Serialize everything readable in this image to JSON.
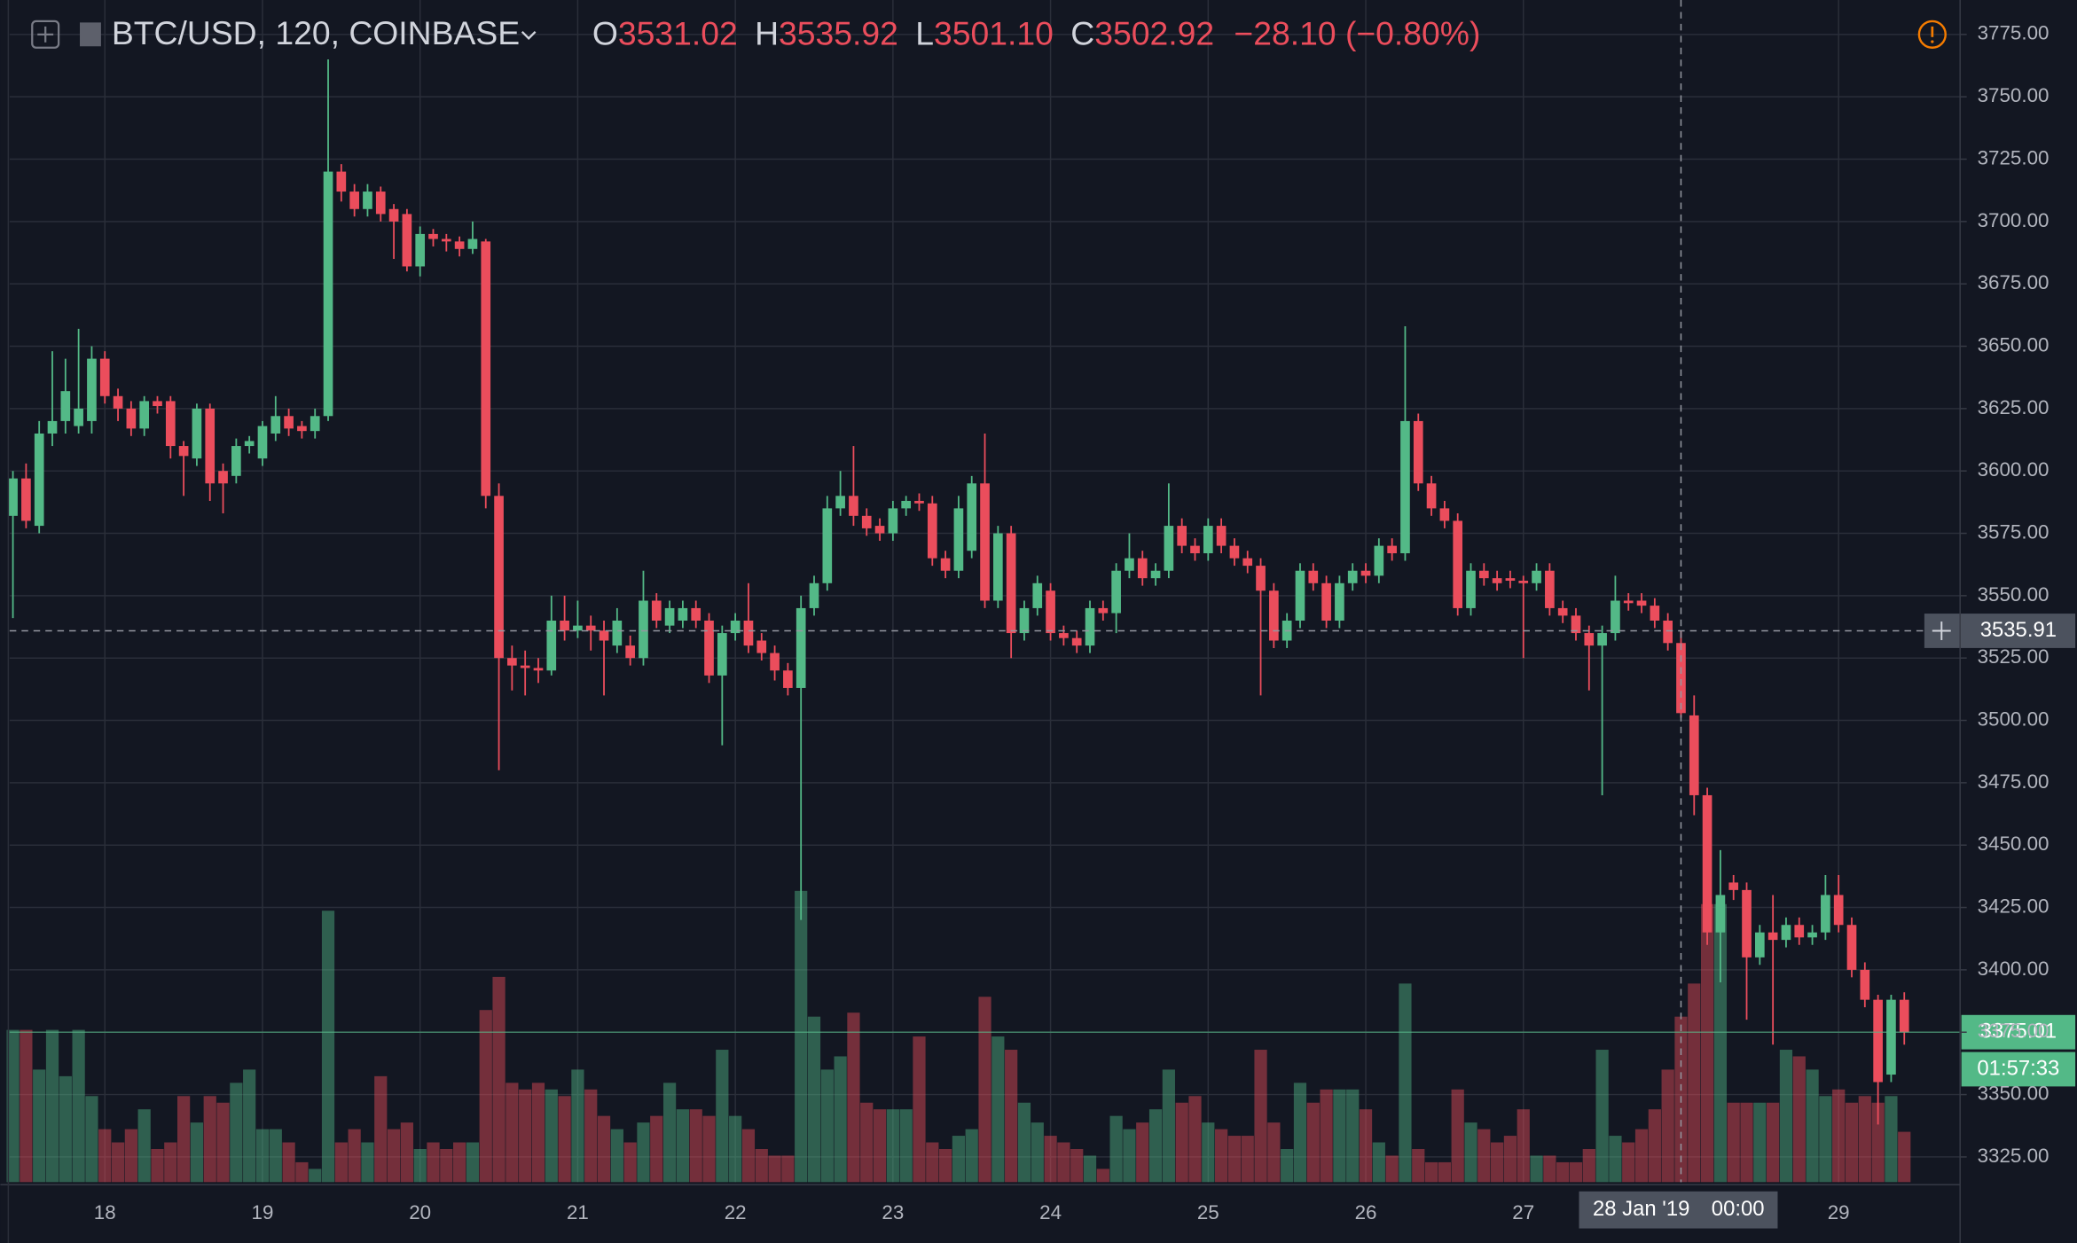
{
  "chart_data": {
    "type": "candlestick",
    "header": {
      "symbol": "BTC/USD, 120, COINBASE",
      "o": "O",
      "open": "3531.02",
      "h": "H",
      "high": "3535.92",
      "l": "L",
      "low": "3501.10",
      "c": "C",
      "close": "3502.92",
      "change": "−28.10 (−0.80%)"
    },
    "up_color": "#53b987",
    "down_color": "#eb4d5c",
    "grid": true,
    "xlim": [
      9.5,
      306.5
    ],
    "ylim": [
      3314.9,
      3788.8
    ],
    "xticks": [
      {
        "value": 24,
        "label": "18"
      },
      {
        "value": 48,
        "label": "19"
      },
      {
        "value": 72,
        "label": "20"
      },
      {
        "value": 96,
        "label": "21"
      },
      {
        "value": 120,
        "label": "22"
      },
      {
        "value": 144,
        "label": "23"
      },
      {
        "value": 168,
        "label": "24"
      },
      {
        "value": 192,
        "label": "25"
      },
      {
        "value": 216,
        "label": "26"
      },
      {
        "value": 240,
        "label": "27"
      },
      {
        "value": 288,
        "label": "29"
      }
    ],
    "yticks": [
      {
        "value": 3325,
        "label": "3325.00"
      },
      {
        "value": 3350,
        "label": "3350.00"
      },
      {
        "value": 3375,
        "label": "3375.00"
      },
      {
        "value": 3400,
        "label": "3400.00"
      },
      {
        "value": 3425,
        "label": "3425.00"
      },
      {
        "value": 3450,
        "label": "3450.00"
      },
      {
        "value": 3475,
        "label": "3475.00"
      },
      {
        "value": 3500,
        "label": "3500.00"
      },
      {
        "value": 3525,
        "label": "3525.00"
      },
      {
        "value": 3550,
        "label": "3550.00"
      },
      {
        "value": 3575,
        "label": "3575.00"
      },
      {
        "value": 3600,
        "label": "3600.00"
      },
      {
        "value": 3625,
        "label": "3625.00"
      },
      {
        "value": 3650,
        "label": "3650.00"
      },
      {
        "value": 3675,
        "label": "3675.00"
      },
      {
        "value": 3700,
        "label": "3700.00"
      },
      {
        "value": 3725,
        "label": "3725.00"
      },
      {
        "value": 3750,
        "label": "3750.00"
      },
      {
        "value": 3775,
        "label": "3775.00"
      }
    ],
    "x": [
      10,
      12,
      14,
      16,
      18,
      20,
      22,
      24,
      26,
      28,
      30,
      32,
      34,
      36,
      38,
      40,
      42,
      44,
      46,
      48,
      50,
      52,
      54,
      56,
      58,
      60,
      62,
      64,
      66,
      68,
      70,
      72,
      74,
      76,
      78,
      80,
      82,
      84,
      86,
      88,
      90,
      92,
      94,
      96,
      98,
      100,
      102,
      104,
      106,
      108,
      110,
      112,
      114,
      116,
      118,
      120,
      122,
      124,
      126,
      128,
      130,
      132,
      134,
      136,
      138,
      140,
      142,
      144,
      146,
      148,
      150,
      152,
      154,
      156,
      158,
      160,
      162,
      164,
      166,
      168,
      170,
      172,
      174,
      176,
      178,
      180,
      182,
      184,
      186,
      188,
      190,
      192,
      194,
      196,
      198,
      200,
      202,
      204,
      206,
      208,
      210,
      212,
      214,
      216,
      218,
      220,
      222,
      224,
      226,
      228,
      230,
      232,
      234,
      236,
      238,
      240,
      242,
      244,
      246,
      248,
      250,
      252,
      254,
      256,
      258,
      260,
      262,
      264,
      266,
      268,
      270,
      272,
      274,
      276,
      278,
      280,
      282,
      284,
      286,
      288,
      290,
      292,
      294,
      296,
      298
    ],
    "open": [
      3582,
      3597,
      3578,
      3615,
      3620,
      3618,
      3620,
      3645,
      3630,
      3625,
      3617,
      3628,
      3628,
      3610,
      3605,
      3625,
      3600,
      3598,
      3610,
      3605,
      3615,
      3622,
      3618,
      3616,
      3622,
      3720,
      3712,
      3705,
      3712,
      3705,
      3703,
      3682,
      3695,
      3693,
      3692,
      3689,
      3692,
      3590,
      3525,
      3522,
      3521,
      3520,
      3540,
      3536,
      3538,
      3536,
      3530,
      3530,
      3525,
      3548,
      3538,
      3540,
      3545,
      3540,
      3518,
      3535,
      3540,
      3532,
      3527,
      3520,
      3513,
      3545,
      3555,
      3585,
      3590,
      3582,
      3578,
      3575,
      3585,
      3588,
      3587,
      3565,
      3560,
      3568,
      3595,
      3548,
      3575,
      3535,
      3545,
      3552,
      3535,
      3533,
      3530,
      3545,
      3543,
      3560,
      3565,
      3557,
      3560,
      3578,
      3570,
      3567,
      3578,
      3570,
      3565,
      3562,
      3552,
      3532,
      3540,
      3560,
      3555,
      3540,
      3555,
      3560,
      3558,
      3570,
      3567,
      3620,
      3595,
      3585,
      3580,
      3545,
      3560,
      3557,
      3557,
      3556,
      3555,
      3560,
      3545,
      3542,
      3535,
      3530,
      3535,
      3548,
      3548,
      3546,
      3540,
      3531.02,
      3502,
      3470,
      3415,
      3435,
      3432,
      3405,
      3415,
      3412,
      3418,
      3413,
      3415,
      3430,
      3418,
      3400,
      3388,
      3358,
      3388
    ],
    "high": [
      3600,
      3603,
      3620,
      3648,
      3645,
      3657,
      3650,
      3648,
      3633,
      3628,
      3630,
      3630,
      3630,
      3612,
      3627,
      3627,
      3603,
      3613,
      3614,
      3620,
      3630,
      3625,
      3620,
      3625,
      3765,
      3723,
      3715,
      3715,
      3714,
      3707,
      3705,
      3698,
      3697,
      3695,
      3694,
      3700,
      3693,
      3595,
      3530,
      3528,
      3525,
      3550,
      3550,
      3548,
      3542,
      3540,
      3545,
      3534,
      3560,
      3551,
      3548,
      3548,
      3548,
      3543,
      3538,
      3543,
      3555,
      3535,
      3530,
      3523,
      3550,
      3558,
      3590,
      3600,
      3610,
      3585,
      3581,
      3588,
      3590,
      3591,
      3590,
      3568,
      3590,
      3598,
      3615,
      3578,
      3578,
      3548,
      3558,
      3555,
      3538,
      3536,
      3548,
      3548,
      3563,
      3575,
      3568,
      3563,
      3595,
      3581,
      3573,
      3581,
      3581,
      3573,
      3568,
      3565,
      3555,
      3543,
      3563,
      3563,
      3558,
      3558,
      3563,
      3563,
      3573,
      3573,
      3658,
      3623,
      3598,
      3588,
      3583,
      3563,
      3563,
      3560,
      3560,
      3558,
      3563,
      3563,
      3548,
      3545,
      3538,
      3538,
      3558,
      3551,
      3551,
      3549,
      3543,
      3535.92,
      3510,
      3473,
      3448,
      3438,
      3435,
      3418,
      3430,
      3421,
      3421,
      3418,
      3438,
      3438,
      3421,
      3403,
      3390,
      3390,
      3391
    ],
    "low": [
      3541,
      3577,
      3575,
      3610,
      3615,
      3615,
      3615,
      3627,
      3620,
      3614,
      3614,
      3623,
      3605,
      3590,
      3602,
      3588,
      3583,
      3595,
      3607,
      3602,
      3612,
      3614,
      3613,
      3613,
      3620,
      3708,
      3702,
      3702,
      3700,
      3685,
      3680,
      3678,
      3690,
      3688,
      3686,
      3687,
      3585,
      3480,
      3512,
      3510,
      3515,
      3518,
      3532,
      3533,
      3528,
      3510,
      3527,
      3522,
      3522,
      3537,
      3535,
      3537,
      3537,
      3515,
      3490,
      3532,
      3527,
      3524,
      3516,
      3510,
      3420,
      3542,
      3552,
      3582,
      3578,
      3574,
      3572,
      3572,
      3582,
      3584,
      3562,
      3557,
      3557,
      3565,
      3545,
      3545,
      3525,
      3532,
      3542,
      3532,
      3530,
      3527,
      3527,
      3540,
      3535,
      3557,
      3554,
      3554,
      3557,
      3567,
      3564,
      3564,
      3567,
      3562,
      3559,
      3510,
      3529,
      3529,
      3537,
      3552,
      3537,
      3537,
      3552,
      3555,
      3555,
      3564,
      3564,
      3592,
      3582,
      3577,
      3542,
      3542,
      3554,
      3552,
      3553,
      3525,
      3552,
      3542,
      3539,
      3532,
      3512,
      3470,
      3532,
      3544,
      3543,
      3537,
      3528,
      3501.1,
      3462,
      3410,
      3395,
      3428,
      3380,
      3402,
      3370,
      3409,
      3410,
      3410,
      3412,
      3415,
      3397,
      3385,
      3338,
      3355,
      3370
    ],
    "close": [
      3597,
      3580,
      3615,
      3620,
      3632,
      3625,
      3645,
      3630,
      3625,
      3617,
      3628,
      3626,
      3610,
      3606,
      3625,
      3595,
      3595,
      3610,
      3612,
      3618,
      3622,
      3617,
      3616,
      3622,
      3720,
      3712,
      3705,
      3712,
      3703,
      3700,
      3682,
      3695,
      3693,
      3692,
      3689,
      3693,
      3590,
      3525,
      3522,
      3521,
      3520,
      3540,
      3536,
      3538,
      3536,
      3532,
      3540,
      3525,
      3548,
      3540,
      3545,
      3545,
      3540,
      3518,
      3535,
      3540,
      3530,
      3527,
      3520,
      3513,
      3545,
      3555,
      3585,
      3590,
      3582,
      3577,
      3575,
      3585,
      3588,
      3587,
      3565,
      3560,
      3585,
      3595,
      3548,
      3575,
      3535,
      3545,
      3555,
      3535,
      3533,
      3530,
      3545,
      3543,
      3560,
      3565,
      3557,
      3560,
      3578,
      3570,
      3567,
      3578,
      3570,
      3565,
      3562,
      3552,
      3532,
      3540,
      3560,
      3555,
      3540,
      3555,
      3560,
      3558,
      3570,
      3567,
      3620,
      3595,
      3585,
      3580,
      3545,
      3560,
      3557,
      3555,
      3556,
      3555,
      3560,
      3545,
      3542,
      3535,
      3530,
      3535,
      3548,
      3547,
      3546,
      3540,
      3531,
      3502.92,
      3470,
      3415,
      3430,
      3432,
      3405,
      3415,
      3412,
      3418,
      3413,
      3415,
      3430,
      3418,
      3400,
      3388,
      3355,
      3388,
      3375
    ],
    "volume": [
      115,
      115,
      85,
      115,
      80,
      115,
      65,
      40,
      30,
      40,
      55,
      25,
      30,
      65,
      45,
      65,
      60,
      75,
      85,
      40,
      40,
      30,
      15,
      10,
      205,
      30,
      40,
      30,
      80,
      40,
      45,
      25,
      30,
      25,
      30,
      30,
      130,
      155,
      75,
      70,
      75,
      70,
      65,
      85,
      70,
      50,
      40,
      30,
      45,
      50,
      75,
      55,
      55,
      50,
      100,
      50,
      40,
      25,
      20,
      20,
      220,
      125,
      85,
      95,
      128,
      60,
      55,
      55,
      55,
      110,
      30,
      25,
      35,
      40,
      140,
      110,
      100,
      60,
      45,
      35,
      30,
      25,
      20,
      10,
      50,
      40,
      45,
      55,
      85,
      60,
      65,
      45,
      40,
      35,
      35,
      100,
      45,
      25,
      75,
      60,
      70,
      70,
      70,
      55,
      30,
      20,
      150,
      25,
      15,
      15,
      70,
      45,
      40,
      30,
      35,
      55,
      20,
      20,
      15,
      15,
      25,
      100,
      35,
      30,
      40,
      55,
      85,
      125,
      150,
      210,
      210,
      60,
      60,
      60,
      60,
      100,
      95,
      85,
      65,
      70,
      60,
      65,
      60,
      65,
      38
    ],
    "last_price": 3375.01,
    "countdown": "01:57:33",
    "crosshair": {
      "x": 264,
      "date_label": "28 Jan '19",
      "time_label": "00:00",
      "y": 3535.91
    }
  }
}
